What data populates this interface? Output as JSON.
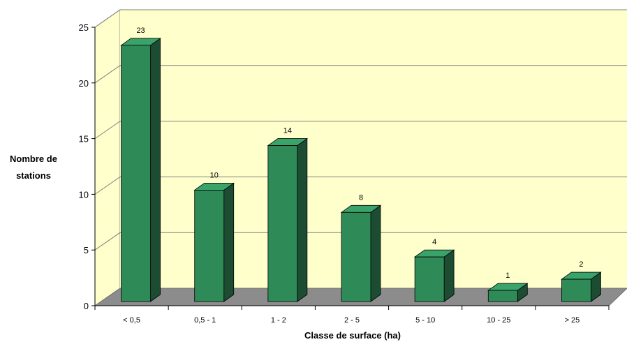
{
  "chart_data": {
    "type": "bar",
    "style": "3d",
    "categories": [
      "< 0,5",
      "0,5 - 1",
      "1 - 2",
      "2 - 5",
      "5 - 10",
      "10 - 25",
      "> 25"
    ],
    "values": [
      23,
      10,
      14,
      8,
      4,
      1,
      2
    ],
    "xlabel": "Classe de surface (ha)",
    "ylabel": [
      "Nombre de",
      "stations"
    ],
    "ylim": [
      0,
      25
    ],
    "yticks": [
      "0",
      "5",
      "10",
      "15",
      "20",
      "25"
    ],
    "grid": true,
    "colors": {
      "bar_front": "#2e8b57",
      "bar_top": "#3aa36a",
      "bar_side": "#1c4d33",
      "wall": "#ffffcc",
      "floor": "#8c8c8c",
      "gridline": "#808080"
    }
  }
}
